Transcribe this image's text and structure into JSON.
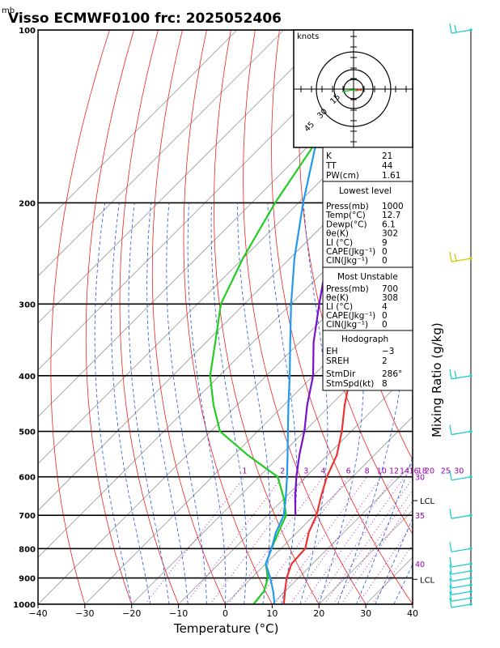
{
  "header": {
    "units_label": "mb",
    "title": "Visso ECMWF0100  frc: 2025052406"
  },
  "chart_data": {
    "type": "line",
    "title": "Visso ECMWF0100  frc: 2025052406",
    "xlabel": "Temperature (°C)",
    "ylabel": "Mixing Ratio (g/kg)",
    "xlim": [
      -40,
      40
    ],
    "plim": [
      1000,
      100
    ],
    "x_ticks": [
      "−40",
      "−30",
      "−20",
      "−10",
      "0",
      "10",
      "20",
      "30",
      "40"
    ],
    "p_ticks": [
      {
        "p": 100,
        "label": "100"
      },
      {
        "p": 200,
        "label": "200"
      },
      {
        "p": 300,
        "label": "300"
      },
      {
        "p": 400,
        "label": "400"
      },
      {
        "p": 500,
        "label": "500"
      },
      {
        "p": 600,
        "label": "600"
      },
      {
        "p": 700,
        "label": "700"
      },
      {
        "p": 800,
        "label": "800"
      },
      {
        "p": 900,
        "label": "900"
      },
      {
        "p": 1000,
        "label": "1000"
      }
    ],
    "mixing_ratio_labels": [
      "1",
      "2",
      "3",
      "4",
      "6",
      "8",
      "10",
      "12",
      "14",
      "16",
      "18",
      "20",
      "25",
      "30"
    ],
    "theta_labels": [
      "30",
      "35",
      "40"
    ],
    "series": [
      {
        "name": "",
        "color": "#ee3333",
        "points": [
          [
            1000,
            12.5
          ],
          [
            950,
            10
          ],
          [
            900,
            7.5
          ],
          [
            850,
            5.5
          ],
          [
            800,
            5.2
          ],
          [
            750,
            2.5
          ],
          [
            700,
            0.5
          ],
          [
            650,
            -2.5
          ],
          [
            600,
            -5.5
          ],
          [
            550,
            -8
          ],
          [
            500,
            -12
          ],
          [
            450,
            -17
          ],
          [
            400,
            -22
          ],
          [
            350,
            -28
          ],
          [
            300,
            -35
          ],
          [
            250,
            -43
          ],
          [
            200,
            -39
          ],
          [
            150,
            -24
          ],
          [
            100,
            -8
          ]
        ]
      },
      {
        "name": "",
        "color": "#22cc22",
        "points": [
          [
            1000,
            6
          ],
          [
            950,
            5.5
          ],
          [
            900,
            3.5
          ],
          [
            850,
            0
          ],
          [
            800,
            -2
          ],
          [
            750,
            -4
          ],
          [
            700,
            -6
          ],
          [
            650,
            -10.5
          ],
          [
            600,
            -16
          ],
          [
            550,
            -27
          ],
          [
            500,
            -38
          ],
          [
            450,
            -45
          ],
          [
            400,
            -52
          ],
          [
            350,
            -58
          ],
          [
            300,
            -65
          ],
          [
            250,
            -70
          ],
          [
            200,
            -75
          ],
          [
            150,
            -80
          ],
          [
            100,
            -84
          ]
        ]
      },
      {
        "name": "",
        "color": "#2299ee",
        "points": [
          [
            1000,
            10.5
          ],
          [
            950,
            7.5
          ],
          [
            900,
            4
          ],
          [
            850,
            0
          ],
          [
            800,
            -2
          ],
          [
            750,
            -4.5
          ],
          [
            700,
            -6.5
          ],
          [
            650,
            -10
          ],
          [
            600,
            -14
          ],
          [
            550,
            -18.5
          ],
          [
            500,
            -23.5
          ],
          [
            450,
            -29
          ],
          [
            400,
            -35
          ],
          [
            350,
            -42
          ],
          [
            300,
            -50
          ],
          [
            250,
            -59
          ],
          [
            200,
            -69
          ],
          [
            150,
            -81
          ]
        ]
      },
      {
        "name": "",
        "color": "#7711cc",
        "points": [
          [
            700,
            -4
          ],
          [
            650,
            -8
          ],
          [
            600,
            -12
          ],
          [
            550,
            -16
          ],
          [
            500,
            -20
          ],
          [
            450,
            -25
          ],
          [
            400,
            -30
          ],
          [
            350,
            -37
          ],
          [
            300,
            -44
          ],
          [
            250,
            -52
          ],
          [
            200,
            -61
          ],
          [
            150,
            -72
          ],
          [
            130,
            -78
          ]
        ]
      }
    ],
    "lcl_labels": [
      {
        "p": 660,
        "label": "LCL"
      },
      {
        "p": 905,
        "label": "LCL"
      }
    ]
  },
  "hodograph": {
    "units": "knots",
    "ring_labels": [
      "15",
      "30",
      "45"
    ]
  },
  "indices": {
    "top": [
      {
        "k": "K",
        "v": "21"
      },
      {
        "k": "TT",
        "v": "44"
      },
      {
        "k": "PW(cm)",
        "v": "1.61"
      }
    ],
    "lowest_title": "Lowest level",
    "lowest": [
      {
        "k": "Press(mb)",
        "v": "1000"
      },
      {
        "k": "Temp(°C)",
        "v": "12.7"
      },
      {
        "k": "Dewp(°C)",
        "v": "6.1"
      },
      {
        "k": "θe(K)",
        "v": "302"
      },
      {
        "k": "LI (°C)",
        "v": "9"
      },
      {
        "k": "CAPE(Jkg⁻¹)",
        "v": "0"
      },
      {
        "k": "CIN(Jkg⁻¹)",
        "v": "0"
      }
    ],
    "unstable_title": "Most Unstable",
    "unstable": [
      {
        "k": "Press(mb)",
        "v": "700"
      },
      {
        "k": "θe(K)",
        "v": "308"
      },
      {
        "k": "LI (°C)",
        "v": "4"
      },
      {
        "k": "CAPE(Jkg⁻¹)",
        "v": "0"
      },
      {
        "k": "CIN(Jkg⁻¹)",
        "v": "0"
      }
    ],
    "hodo_title": "Hodograph",
    "hodo": [
      {
        "k": "EH",
        "v": "−3"
      },
      {
        "k": "SREH",
        "v": "2"
      },
      {
        "k": "StmDir",
        "v": "286°"
      },
      {
        "k": "StmSpd(kt)",
        "v": "8"
      }
    ]
  },
  "colors": {
    "temperature": "#ee3333",
    "dewpoint": "#22cc22",
    "isotherm": "#999999",
    "dry_adiabat": "#ee2222",
    "moist_adiabat": "#2255dd",
    "mixing_ratio": "#9a00b0",
    "wind_barbs": "#22cccc"
  }
}
